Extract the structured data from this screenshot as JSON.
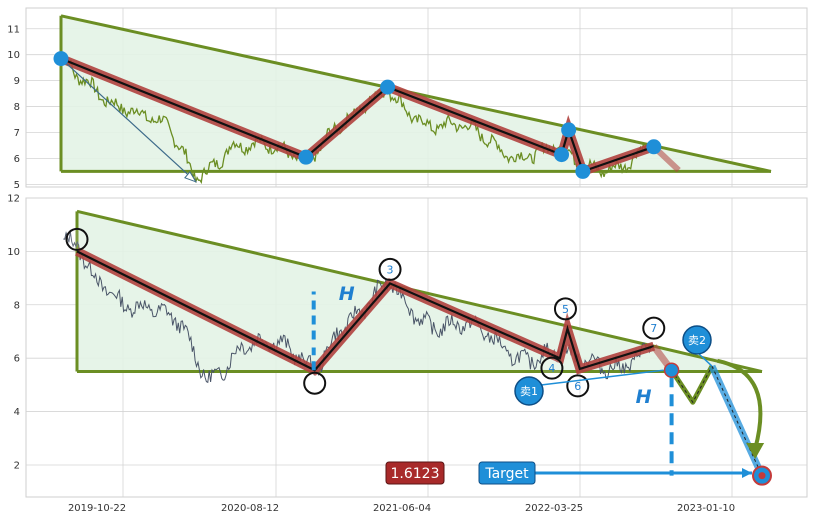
{
  "colors": {
    "triangle_line": "#6b8e23",
    "triangle_fill": "#e3f3e6",
    "price_top": "#6b8e23",
    "price_bottom": "#4a5568",
    "wave_outer": "#b0413e",
    "wave_inner": "#111111",
    "pivot_dot": "#1f8fd8",
    "h_line": "#1f8fd8",
    "value_box": "#a82a2a",
    "target_box": "#1f8fd8",
    "grid": "#d4d4d4"
  },
  "chart_data": [
    {
      "type": "line",
      "panel": "overview",
      "ylim": [
        4.9,
        11.8
      ],
      "yticks": [
        "5",
        "6",
        "7",
        "8",
        "9",
        "10",
        "11"
      ],
      "triangle": {
        "apex_start": [
          0.0,
          11.5
        ],
        "base_start": [
          0.0,
          5.5
        ],
        "end": [
          1.0,
          5.5
        ]
      },
      "wave_points": [
        {
          "t": 0.0,
          "v": 9.85
        },
        {
          "t": 0.345,
          "v": 6.05
        },
        {
          "t": 0.46,
          "v": 8.75
        },
        {
          "t": 0.705,
          "v": 6.15
        },
        {
          "t": 0.715,
          "v": 7.1
        },
        {
          "t": 0.735,
          "v": 5.5
        },
        {
          "t": 0.835,
          "v": 6.45
        }
      ],
      "projection": [
        {
          "t": 0.835,
          "v": 6.45
        },
        {
          "t": 0.87,
          "v": 5.55
        }
      ]
    },
    {
      "type": "line",
      "panel": "detail",
      "ylim": [
        0.8,
        12.0
      ],
      "yticks": [
        "2",
        "4",
        "6",
        "8",
        "10",
        "12"
      ],
      "xticks": [
        "2019-10-22",
        "2020-08-12",
        "2021-06-04",
        "2022-03-25",
        "2023-01-10"
      ],
      "triangle": {
        "apex_start": [
          0.0,
          11.5
        ],
        "base_start": [
          0.0,
          5.5
        ],
        "end": [
          1.0,
          5.5
        ]
      },
      "pivots": [
        {
          "label": "",
          "t": 0.0,
          "v": 10.0
        },
        {
          "label": "",
          "t": 0.347,
          "v": 5.55
        },
        {
          "label": "3",
          "t": 0.457,
          "v": 8.8
        },
        {
          "label": "4",
          "t": 0.705,
          "v": 6.0
        },
        {
          "label": "5",
          "t": 0.716,
          "v": 7.1
        },
        {
          "label": "6",
          "t": 0.734,
          "v": 5.6
        },
        {
          "label": "7",
          "t": 0.842,
          "v": 6.45
        }
      ],
      "projection": [
        {
          "t": 0.842,
          "v": 6.45
        },
        {
          "t": 0.868,
          "v": 5.55
        },
        {
          "t": 0.899,
          "v": 4.35
        },
        {
          "t": 0.927,
          "v": 5.7
        },
        {
          "t": 1.0,
          "v": 1.6
        }
      ],
      "annotations": {
        "h_label": "H",
        "sell1": "卖1",
        "sell2": "卖2",
        "target_label": "Target",
        "target_value": "1.6123"
      }
    }
  ]
}
